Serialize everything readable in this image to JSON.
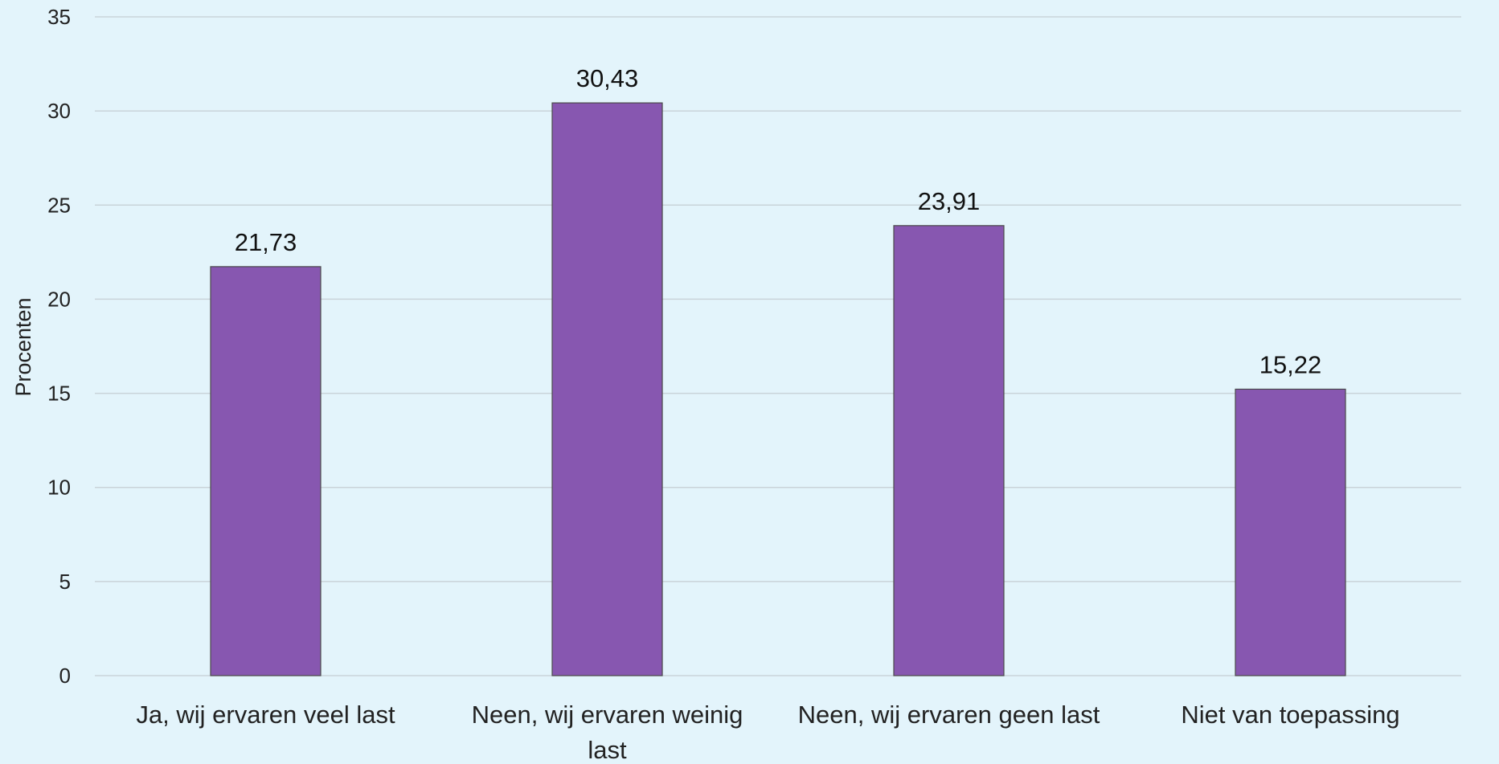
{
  "chart_data": {
    "type": "bar",
    "categories": [
      [
        "Ja, wij ervaren veel last"
      ],
      [
        "Neen, wij ervaren weinig",
        "last"
      ],
      [
        "Neen, wij ervaren geen last"
      ],
      [
        "Niet van toepassing"
      ]
    ],
    "values": [
      21.73,
      30.43,
      23.91,
      15.22
    ],
    "data_labels": [
      "21,73",
      "30,43",
      "23,91",
      "15,22"
    ],
    "ylabel": "Procenten",
    "ylim": [
      0,
      35
    ],
    "yticks": [
      0,
      5,
      10,
      15,
      20,
      25,
      30,
      35
    ],
    "grid": true,
    "legend": "none",
    "colors": {
      "bar": "#8757b0",
      "background": "#e3f4fb",
      "grid": "#c9d3d9"
    }
  }
}
